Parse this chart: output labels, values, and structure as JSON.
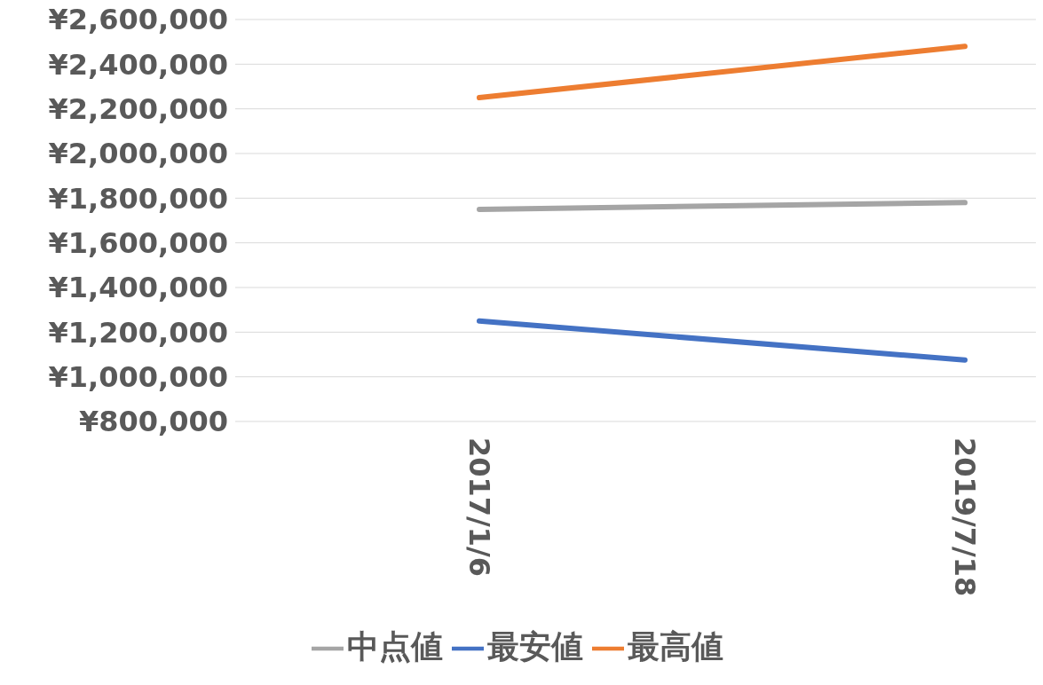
{
  "chart_data": {
    "type": "line",
    "categories": [
      "2017/1/6",
      "2019/7/18"
    ],
    "series": [
      {
        "name": "最安値",
        "color": "#4472c4",
        "values": [
          1250000,
          1075000
        ]
      },
      {
        "name": "最高値",
        "color": "#ed7d31",
        "values": [
          2250000,
          2480000
        ]
      },
      {
        "name": "中点値",
        "color": "#a5a5a5",
        "values": [
          1750000,
          1780000
        ]
      }
    ],
    "ylim": [
      800000,
      2600000
    ],
    "yticks": [
      {
        "value": 800000,
        "label": "¥800,000"
      },
      {
        "value": 1000000,
        "label": "¥1,000,000"
      },
      {
        "value": 1200000,
        "label": "¥1,200,000"
      },
      {
        "value": 1400000,
        "label": "¥1,400,000"
      },
      {
        "value": 1600000,
        "label": "¥1,600,000"
      },
      {
        "value": 1800000,
        "label": "¥1,800,000"
      },
      {
        "value": 2000000,
        "label": "¥2,000,000"
      },
      {
        "value": 2200000,
        "label": "¥2,200,000"
      },
      {
        "value": 2400000,
        "label": "¥2,400,000"
      },
      {
        "value": 2600000,
        "label": "¥2,600,000"
      }
    ],
    "grid": "y",
    "legend": "bottom",
    "marker": "none",
    "line_style": "solid"
  }
}
